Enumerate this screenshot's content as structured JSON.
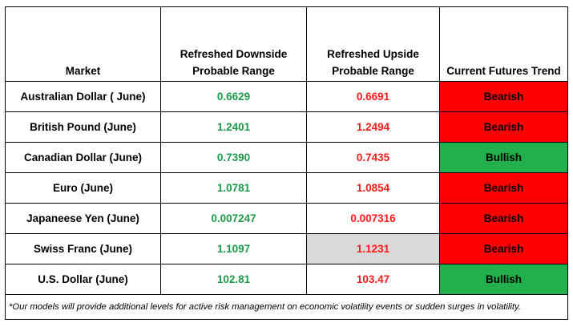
{
  "headers": {
    "market": "Market",
    "downside": "Refreshed Downside Probable Range",
    "upside": "Refreshed Upside Probable Range",
    "trend": "Current Futures Trend"
  },
  "rows": [
    {
      "market": "Australian Dollar ( June)",
      "downside": "0.6629",
      "upside": "0.6691",
      "trend": "Bearish"
    },
    {
      "market": "British Pound (June)",
      "downside": "1.2401",
      "upside": "1.2494",
      "trend": "Bearish"
    },
    {
      "market": "Canadian Dollar (June)",
      "downside": "0.7390",
      "upside": "0.7435",
      "trend": "Bullish"
    },
    {
      "market": "Euro (June)",
      "downside": "1.0781",
      "upside": "1.0854",
      "trend": "Bearish"
    },
    {
      "market": "Japaneese Yen (June)",
      "downside": "0.007247",
      "upside": "0.007316",
      "trend": "Bearish"
    },
    {
      "market": "Swiss Franc (June)",
      "downside": "1.1097",
      "upside": "1.1231",
      "trend": "Bearish"
    },
    {
      "market": "U.S. Dollar (June)",
      "downside": "102.81",
      "upside": "103.47",
      "trend": "Bullish"
    }
  ],
  "colors": {
    "downside_text": "#1e9a4a",
    "upside_text": "#ff1a1a",
    "bearish_fill": "#ff0000",
    "bullish_fill": "#21b04b",
    "highlight_cell": "#d9d9d9"
  },
  "footnote": "*Our models will provide additional levels for active risk management on economic volatility events or sudden surges in volatility."
}
